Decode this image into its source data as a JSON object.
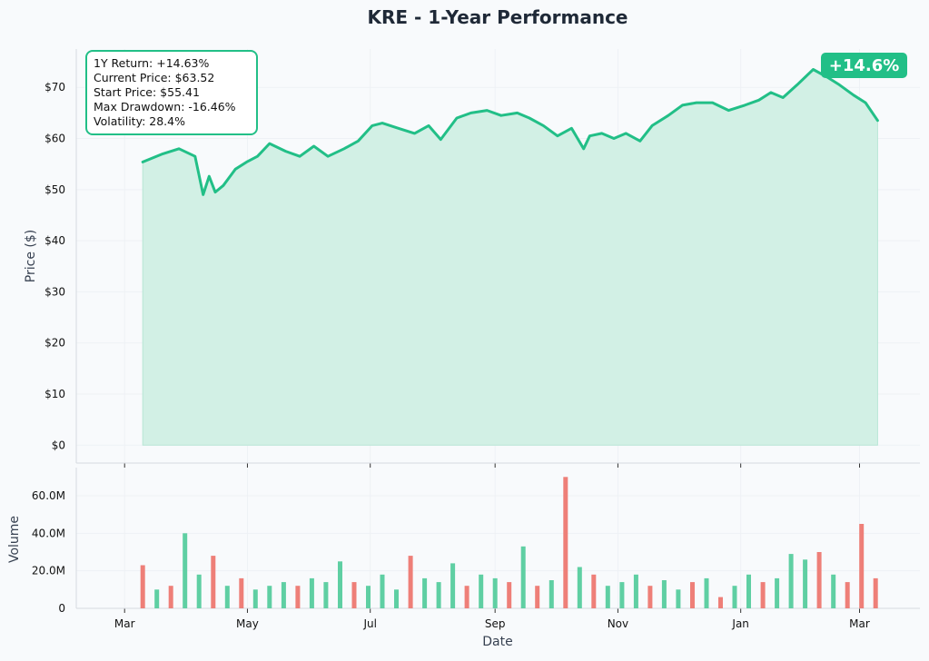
{
  "chart_data": {
    "type": "line",
    "title": "KRE - 1-Year Performance",
    "xlabel": "Date",
    "colors": {
      "line": "#22bf87",
      "fill": "#d2f0e5",
      "up_volume": "#5fcfa3",
      "down_volume": "#ee7f78",
      "badge": "#22bf87",
      "grid": "#eef1f5"
    },
    "x_ticks": [
      "Mar",
      "May",
      "Jul",
      "Sep",
      "Nov",
      "Jan",
      "Mar"
    ],
    "x_tick_dates": [
      "2024-03-01",
      "2024-05-01",
      "2024-07-01",
      "2024-09-01",
      "2024-11-01",
      "2025-01-01",
      "2025-03-01"
    ],
    "x_range": [
      "2024-02-06",
      "2025-03-31"
    ],
    "grid": true,
    "price_panel": {
      "ylabel": "Price ($)",
      "ylim": [
        -3.5,
        77.5
      ],
      "y_ticks": [
        0,
        10,
        20,
        30,
        40,
        50,
        60,
        70
      ],
      "y_tick_labels": [
        "$0",
        "$10",
        "$20",
        "$30",
        "$40",
        "$50",
        "$60",
        "$70"
      ],
      "series": [
        {
          "x": [
            "2024-03-10",
            "2024-03-20",
            "2024-03-28",
            "2024-04-05",
            "2024-04-09",
            "2024-04-12",
            "2024-04-15",
            "2024-04-19",
            "2024-04-25",
            "2024-05-01",
            "2024-05-06",
            "2024-05-12",
            "2024-05-20",
            "2024-05-27",
            "2024-06-03",
            "2024-06-10",
            "2024-06-18",
            "2024-06-25",
            "2024-07-02",
            "2024-07-07",
            "2024-07-15",
            "2024-07-23",
            "2024-07-30",
            "2024-08-05",
            "2024-08-13",
            "2024-08-20",
            "2024-08-28",
            "2024-09-04",
            "2024-09-12",
            "2024-09-18",
            "2024-09-25",
            "2024-10-02",
            "2024-10-09",
            "2024-10-15",
            "2024-10-18",
            "2024-10-24",
            "2024-10-30",
            "2024-11-05",
            "2024-11-12",
            "2024-11-18",
            "2024-11-26",
            "2024-12-03",
            "2024-12-10",
            "2024-12-18",
            "2024-12-26",
            "2025-01-03",
            "2025-01-10",
            "2025-01-16",
            "2025-01-22",
            "2025-01-29",
            "2025-02-06",
            "2025-02-13",
            "2025-02-19",
            "2025-02-26",
            "2025-03-04",
            "2025-03-10"
          ],
          "y": [
            55.41,
            57.0,
            58.0,
            56.5,
            49.0,
            52.6,
            49.5,
            50.8,
            54.0,
            55.5,
            56.5,
            59.0,
            57.5,
            56.5,
            58.5,
            56.5,
            58.0,
            59.5,
            62.5,
            63.0,
            62.0,
            61.0,
            62.5,
            59.8,
            64.0,
            65.0,
            65.5,
            64.5,
            65.0,
            64.0,
            62.5,
            60.5,
            62.0,
            58.0,
            60.5,
            61.0,
            60.0,
            61.0,
            59.5,
            62.5,
            64.5,
            66.5,
            67.0,
            67.0,
            65.5,
            66.5,
            67.5,
            69.0,
            68.0,
            70.5,
            73.5,
            72.0,
            70.5,
            68.5,
            67.0,
            63.52
          ]
        }
      ]
    },
    "stats_box": {
      "lines": [
        "1Y Return: +14.63%",
        "Current Price: $63.52",
        "Start Price: $55.41",
        "Max Drawdown: -16.46%",
        "Volatility: 28.4%"
      ]
    },
    "badge": {
      "text": "+14.6%"
    },
    "volume_panel": {
      "ylabel": "Volume",
      "ylim": [
        0,
        75
      ],
      "y_ticks": [
        0,
        20,
        40,
        60
      ],
      "y_tick_labels": [
        "0",
        "20.0M",
        "40.0M",
        "60.0M"
      ],
      "unit": "M",
      "dates": [
        "2024-03-10",
        "2024-03-17",
        "2024-03-24",
        "2024-03-31",
        "2024-04-07",
        "2024-04-14",
        "2024-04-21",
        "2024-04-28",
        "2024-05-05",
        "2024-05-12",
        "2024-05-19",
        "2024-05-26",
        "2024-06-02",
        "2024-06-09",
        "2024-06-16",
        "2024-06-23",
        "2024-06-30",
        "2024-07-07",
        "2024-07-14",
        "2024-07-21",
        "2024-07-28",
        "2024-08-04",
        "2024-08-11",
        "2024-08-18",
        "2024-08-25",
        "2024-09-01",
        "2024-09-08",
        "2024-09-15",
        "2024-09-22",
        "2024-09-29",
        "2024-10-06",
        "2024-10-13",
        "2024-10-20",
        "2024-10-27",
        "2024-11-03",
        "2024-11-10",
        "2024-11-17",
        "2024-11-24",
        "2024-12-01",
        "2024-12-08",
        "2024-12-15",
        "2024-12-22",
        "2024-12-29",
        "2025-01-05",
        "2025-01-12",
        "2025-01-19",
        "2025-01-26",
        "2025-02-02",
        "2025-02-09",
        "2025-02-16",
        "2025-02-23",
        "2025-03-02",
        "2025-03-09"
      ],
      "values": [
        23,
        10,
        12,
        40,
        18,
        28,
        12,
        16,
        10,
        12,
        14,
        12,
        16,
        14,
        25,
        14,
        12,
        18,
        10,
        28,
        16,
        14,
        24,
        12,
        18,
        16,
        14,
        33,
        12,
        15,
        70,
        22,
        18,
        12,
        14,
        18,
        12,
        15,
        10,
        14,
        16,
        6,
        12,
        18,
        14,
        16,
        29,
        26,
        30,
        18,
        14,
        45,
        16
      ],
      "up": [
        false,
        true,
        false,
        true,
        true,
        false,
        true,
        false,
        true,
        true,
        true,
        false,
        true,
        true,
        true,
        false,
        true,
        true,
        true,
        false,
        true,
        true,
        true,
        false,
        true,
        true,
        false,
        true,
        false,
        true,
        false,
        true,
        false,
        true,
        true,
        true,
        false,
        true,
        true,
        false,
        true,
        false,
        true,
        true,
        false,
        true,
        true,
        true,
        false,
        true,
        false,
        false,
        false
      ]
    }
  }
}
